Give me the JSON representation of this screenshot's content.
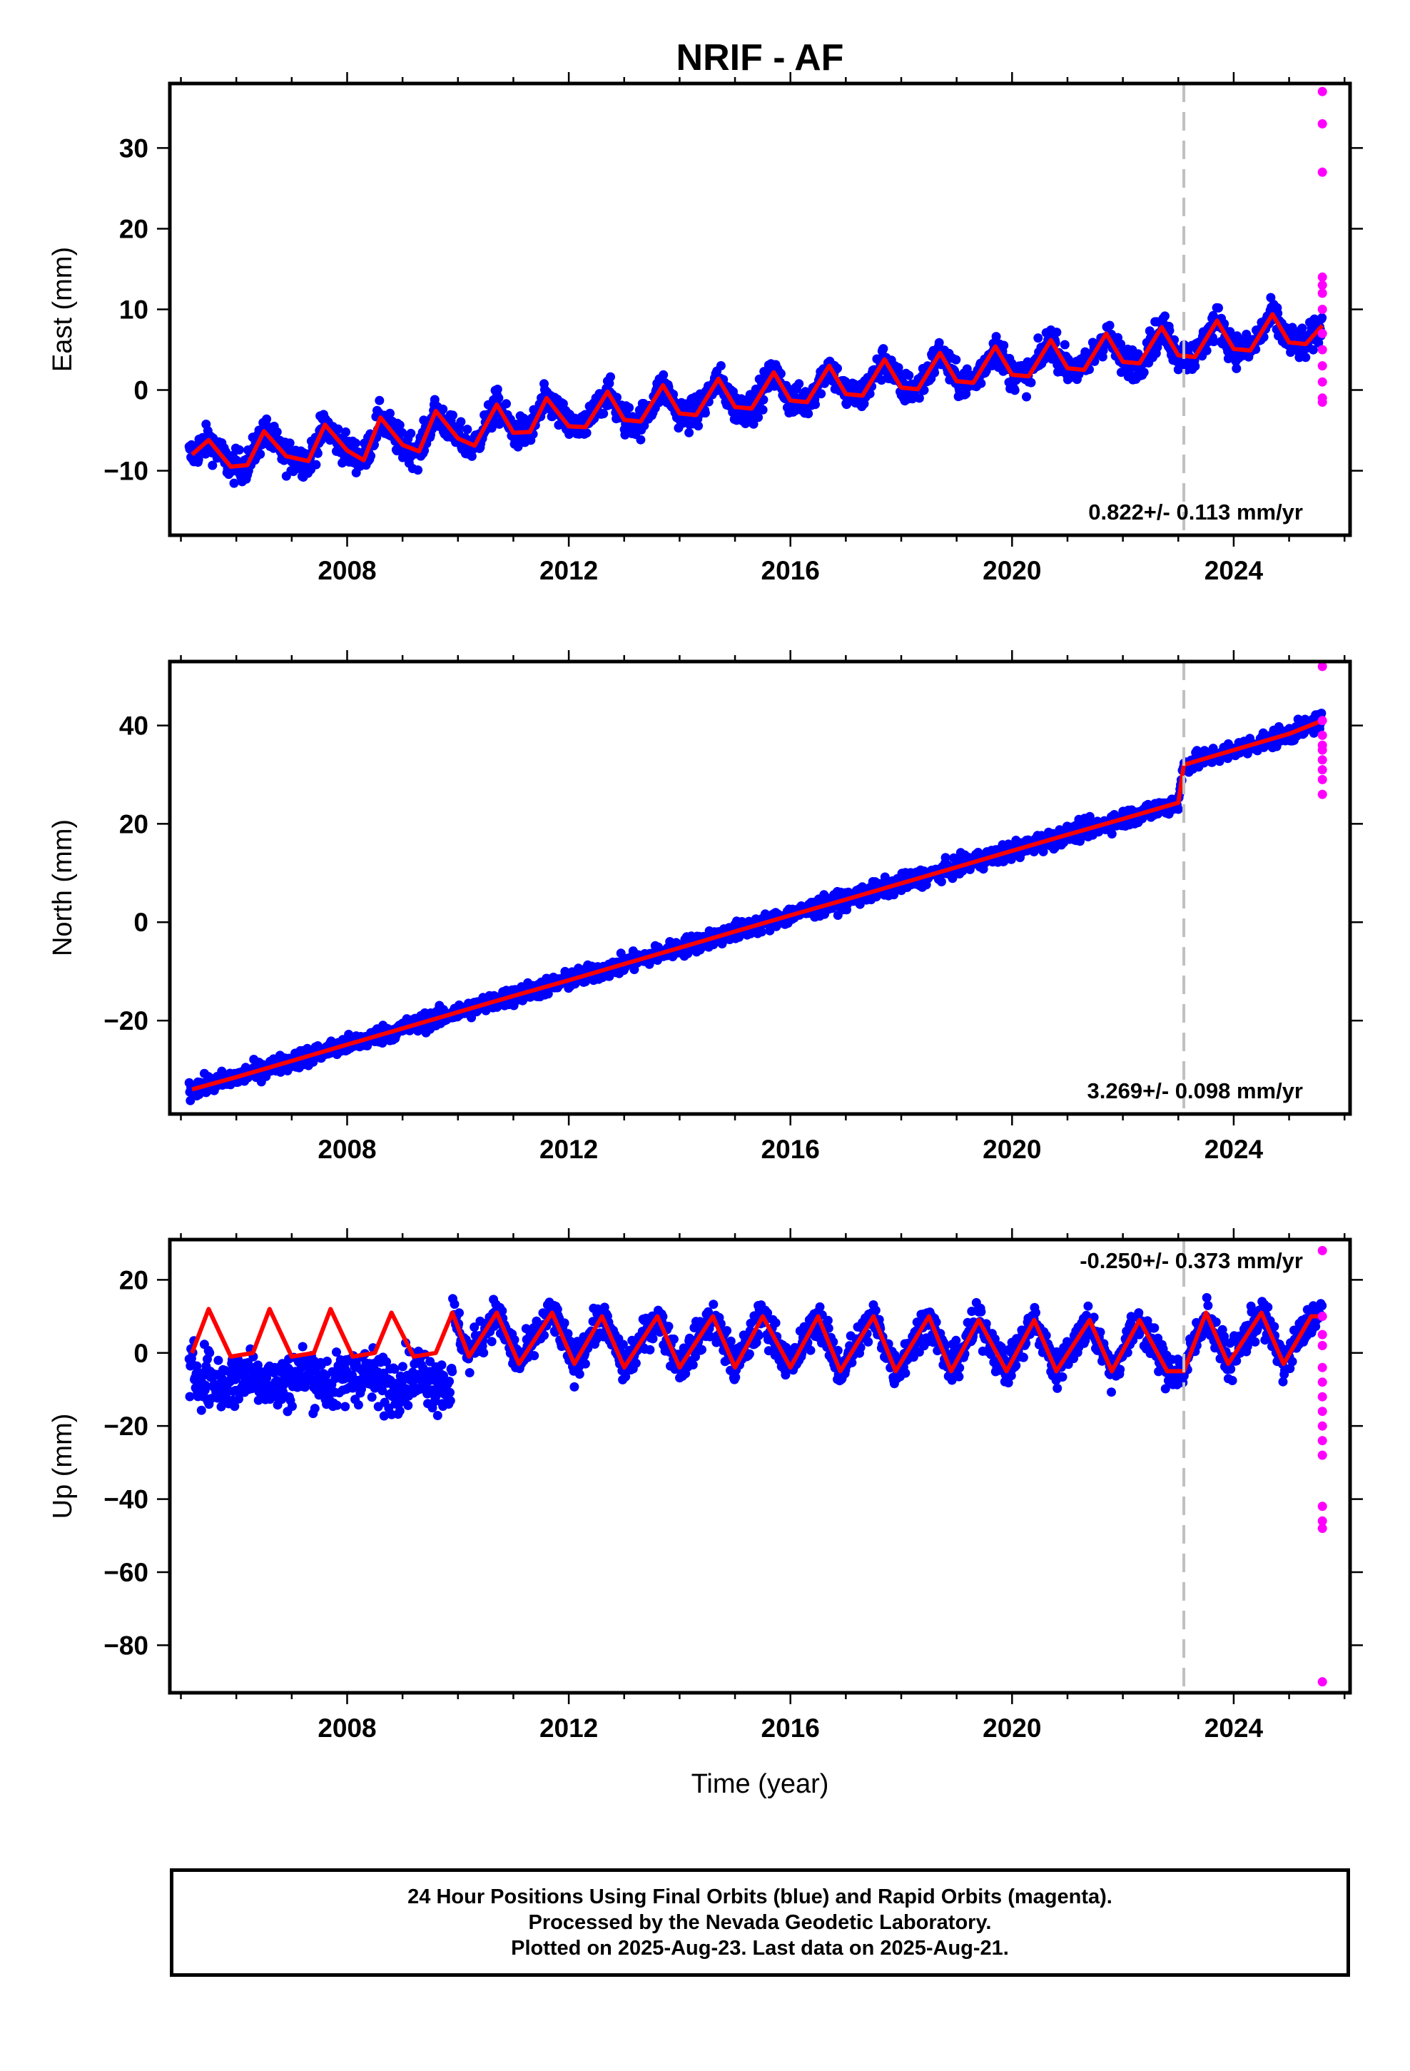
{
  "chart_data": {
    "type": "scatter",
    "title": "NRIF - AF",
    "xlabel": "Time (year)",
    "xlim": [
      2004.8,
      2026.1
    ],
    "x_ticks": [
      2008,
      2012,
      2016,
      2020,
      2024
    ],
    "grid": false,
    "event_line_x": 2023.1,
    "colors": {
      "final_orbits": "#0000ff",
      "rapid_orbits": "#ff00ff",
      "model_fit": "#ff0000",
      "event_line": "#c0c0c0"
    },
    "panels": [
      {
        "name": "east",
        "ylabel": "East (mm)",
        "ylim": [
          -18,
          38
        ],
        "y_ticks": [
          -10,
          0,
          10,
          20,
          30
        ],
        "rate_label": "0.822+/- 0.113 mm/yr",
        "data_start": 2005.15,
        "data_end": 2025.6,
        "rapid_x": 2025.6,
        "rapid_values": [
          37,
          33,
          27,
          14,
          13,
          12,
          10,
          7,
          5,
          3,
          1,
          -1,
          -1.5
        ],
        "model_points": [
          [
            2005.2,
            -8
          ],
          [
            2005.5,
            -6.2
          ],
          [
            2005.9,
            -9.5
          ],
          [
            2006.2,
            -9.3
          ],
          [
            2006.5,
            -5.1
          ],
          [
            2006.9,
            -8.2
          ],
          [
            2007.3,
            -8.8
          ],
          [
            2007.6,
            -4.3
          ],
          [
            2008.0,
            -7.5
          ],
          [
            2008.3,
            -8.7
          ],
          [
            2008.6,
            -3.4
          ],
          [
            2009.0,
            -6.8
          ],
          [
            2009.3,
            -7.6
          ],
          [
            2009.6,
            -2.6
          ],
          [
            2010.0,
            -6.0
          ],
          [
            2010.3,
            -6.9
          ],
          [
            2010.7,
            -1.8
          ],
          [
            2011.0,
            -5.3
          ],
          [
            2011.3,
            -5.2
          ],
          [
            2011.6,
            -1.0
          ],
          [
            2012.0,
            -4.5
          ],
          [
            2012.3,
            -4.6
          ],
          [
            2012.7,
            -0.2
          ],
          [
            2013.0,
            -3.7
          ],
          [
            2013.3,
            -3.9
          ],
          [
            2013.7,
            0.6
          ],
          [
            2014.0,
            -2.9
          ],
          [
            2014.3,
            -3.1
          ],
          [
            2014.7,
            1.4
          ],
          [
            2015.0,
            -2.1
          ],
          [
            2015.3,
            -2.3
          ],
          [
            2015.7,
            2.2
          ],
          [
            2016.0,
            -1.3
          ],
          [
            2016.3,
            -1.5
          ],
          [
            2016.7,
            3.0
          ],
          [
            2017.0,
            -0.5
          ],
          [
            2017.3,
            -0.7
          ],
          [
            2017.7,
            3.8
          ],
          [
            2018.0,
            0.3
          ],
          [
            2018.3,
            0.1
          ],
          [
            2018.7,
            4.6
          ],
          [
            2019.0,
            1.1
          ],
          [
            2019.3,
            0.9
          ],
          [
            2019.7,
            5.4
          ],
          [
            2020.0,
            1.9
          ],
          [
            2020.3,
            1.7
          ],
          [
            2020.7,
            6.2
          ],
          [
            2021.0,
            2.7
          ],
          [
            2021.3,
            2.5
          ],
          [
            2021.7,
            7.0
          ],
          [
            2022.0,
            3.5
          ],
          [
            2022.3,
            3.3
          ],
          [
            2022.7,
            7.8
          ],
          [
            2023.0,
            4.3
          ],
          [
            2023.3,
            4.1
          ],
          [
            2023.7,
            8.6
          ],
          [
            2024.0,
            5.1
          ],
          [
            2024.3,
            4.9
          ],
          [
            2024.7,
            9.4
          ],
          [
            2025.0,
            5.9
          ],
          [
            2025.3,
            5.7
          ],
          [
            2025.6,
            8.0
          ]
        ]
      },
      {
        "name": "north",
        "ylabel": "North (mm)",
        "ylim": [
          -39,
          53
        ],
        "y_ticks": [
          -20,
          0,
          20,
          40
        ],
        "rate_label": "3.269+/- 0.098 mm/yr",
        "data_start": 2005.15,
        "data_end": 2025.6,
        "rapid_x": 2025.6,
        "rapid_values": [
          52,
          41,
          38,
          36,
          35,
          33,
          31,
          29,
          26
        ],
        "model_points": [
          [
            2005.2,
            -34
          ],
          [
            2006.0,
            -31.5
          ],
          [
            2007.0,
            -28.2
          ],
          [
            2008.0,
            -24.9
          ],
          [
            2009.0,
            -21.6
          ],
          [
            2010.0,
            -18.3
          ],
          [
            2011.0,
            -15.0
          ],
          [
            2012.0,
            -11.8
          ],
          [
            2013.0,
            -8.5
          ],
          [
            2014.0,
            -5.2
          ],
          [
            2015.0,
            -1.9
          ],
          [
            2016.0,
            1.4
          ],
          [
            2017.0,
            4.6
          ],
          [
            2018.0,
            7.9
          ],
          [
            2019.0,
            11.2
          ],
          [
            2020.0,
            14.5
          ],
          [
            2021.0,
            17.8
          ],
          [
            2022.0,
            21.0
          ],
          [
            2023.0,
            24.3
          ],
          [
            2023.1,
            32.0
          ],
          [
            2024.0,
            35.0
          ],
          [
            2025.0,
            38.3
          ],
          [
            2025.6,
            41.0
          ]
        ]
      },
      {
        "name": "up",
        "ylabel": "Up (mm)",
        "ylim": [
          -93,
          31
        ],
        "y_ticks": [
          -80,
          -60,
          -40,
          -20,
          0,
          20
        ],
        "rate_label": "-0.250+/- 0.373 mm/yr",
        "data_start": 2005.15,
        "data_end": 2025.6,
        "rapid_x": 2025.6,
        "rapid_values": [
          28,
          10,
          5,
          2,
          -4,
          -8,
          -12,
          -16,
          -20,
          -24,
          -28,
          -42,
          -46,
          -48,
          -90
        ],
        "model_points": [
          [
            2005.2,
            0
          ],
          [
            2005.5,
            12
          ],
          [
            2005.9,
            -1
          ],
          [
            2006.3,
            0
          ],
          [
            2006.6,
            12
          ],
          [
            2007.0,
            -1
          ],
          [
            2007.4,
            0
          ],
          [
            2007.7,
            12
          ],
          [
            2008.1,
            -1
          ],
          [
            2008.5,
            0
          ],
          [
            2008.8,
            11
          ],
          [
            2009.2,
            -1
          ],
          [
            2009.6,
            0
          ],
          [
            2009.9,
            11
          ],
          [
            2010.2,
            -1
          ],
          [
            2010.7,
            11
          ],
          [
            2011.1,
            -3
          ],
          [
            2011.7,
            11
          ],
          [
            2012.1,
            -3
          ],
          [
            2012.6,
            10
          ],
          [
            2013.0,
            -4
          ],
          [
            2013.6,
            10
          ],
          [
            2014.0,
            -4
          ],
          [
            2014.6,
            10
          ],
          [
            2015.0,
            -4
          ],
          [
            2015.5,
            10
          ],
          [
            2016.0,
            -4
          ],
          [
            2016.5,
            10
          ],
          [
            2016.9,
            -5
          ],
          [
            2017.5,
            10
          ],
          [
            2017.9,
            -5
          ],
          [
            2018.5,
            10
          ],
          [
            2018.9,
            -5
          ],
          [
            2019.4,
            9
          ],
          [
            2019.9,
            -5
          ],
          [
            2020.4,
            9
          ],
          [
            2020.8,
            -5
          ],
          [
            2021.4,
            9
          ],
          [
            2021.8,
            -5
          ],
          [
            2022.3,
            9
          ],
          [
            2022.8,
            -5
          ],
          [
            2023.1,
            -5
          ],
          [
            2023.5,
            11
          ],
          [
            2023.9,
            -3
          ],
          [
            2024.5,
            11
          ],
          [
            2024.9,
            -3
          ],
          [
            2025.4,
            10
          ],
          [
            2025.6,
            10
          ]
        ]
      }
    ]
  },
  "footer": {
    "line1": "24 Hour Positions Using Final Orbits (blue) and Rapid Orbits (magenta).",
    "line2": "Processed by the Nevada Geodetic Laboratory.",
    "line3": "Plotted on 2025-Aug-23. Last data on 2025-Aug-21."
  }
}
